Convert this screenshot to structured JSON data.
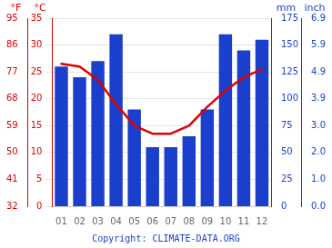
{
  "chart_data": {
    "type": "bar",
    "categories": [
      "01",
      "02",
      "03",
      "04",
      "05",
      "06",
      "07",
      "08",
      "09",
      "10",
      "11",
      "12"
    ],
    "series": [
      {
        "type": "bar",
        "color": "#1a3fcc",
        "axis": "y2",
        "values": [
          130,
          120,
          135,
          160,
          90,
          55,
          55,
          65,
          90,
          160,
          145,
          155
        ]
      },
      {
        "type": "line",
        "color": "#dd0000",
        "values": [
          26.5,
          26.0,
          23.5,
          19.0,
          15.0,
          13.5,
          13.5,
          15.0,
          18.5,
          21.5,
          24.0,
          25.5
        ]
      }
    ],
    "ylim": [
      0,
      35
    ],
    "yticks": [
      0,
      5,
      10,
      15,
      20,
      25,
      30,
      35
    ],
    "y2lim": [
      0,
      175
    ],
    "y2ticks": [
      0,
      25,
      50,
      75,
      100,
      125,
      150,
      175
    ],
    "y3lim": [
      0,
      35
    ],
    "y3ticks": [
      {
        "value": 0,
        "label": "32"
      },
      {
        "value": 5,
        "label": "41"
      },
      {
        "value": 10,
        "label": "50"
      },
      {
        "value": 15,
        "label": "59"
      },
      {
        "value": 20,
        "label": "68"
      },
      {
        "value": 25,
        "label": "77"
      },
      {
        "value": 30,
        "label": "86"
      },
      {
        "value": 35,
        "label": "95"
      }
    ],
    "y4lim": [
      0,
      175
    ],
    "y4ticks": [
      {
        "value": 0,
        "label": "0.0"
      },
      {
        "value": 25,
        "label": "1.0"
      },
      {
        "value": 50,
        "label": "2.0"
      },
      {
        "value": 75,
        "label": "3.0"
      },
      {
        "value": 100,
        "label": "3.9"
      },
      {
        "value": 125,
        "label": "4.9"
      },
      {
        "value": 150,
        "label": "5.9"
      },
      {
        "value": 175,
        "label": "6.9"
      }
    ],
    "ylabel": "°C",
    "y2label": "mm",
    "y3label": "°F",
    "y4label": "inch",
    "annotations": [
      "Copyright: CLIMATE-DATA.ORG"
    ],
    "grid": true
  }
}
